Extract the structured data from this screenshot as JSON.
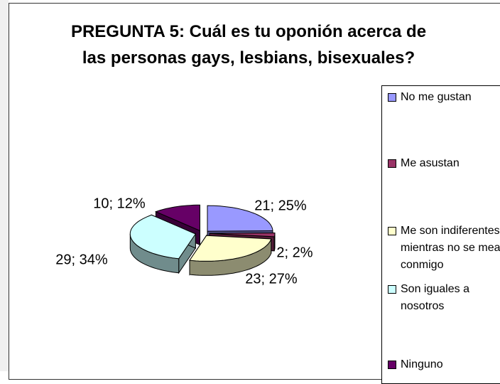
{
  "chart_data": {
    "type": "pie3d",
    "title": "PREGUNTA 5: Cuál es tu oponión acerca de las personas gays, lesbians, bisexuales?",
    "categories": [
      "No me gustan",
      "Me asustan",
      "Me son indiferentes, mientras no se mean conmigo",
      "Son iguales a nosotros",
      "Ninguno"
    ],
    "values": [
      21,
      2,
      23,
      29,
      10
    ],
    "value_labels": [
      "21; 25%",
      "2; 2%",
      "23; 27%",
      "29; 34%",
      "10; 12%"
    ],
    "colors": [
      "#9999ff",
      "#993366",
      "#ffffcc",
      "#ccffff",
      "#660066"
    ],
    "legend": "right"
  }
}
